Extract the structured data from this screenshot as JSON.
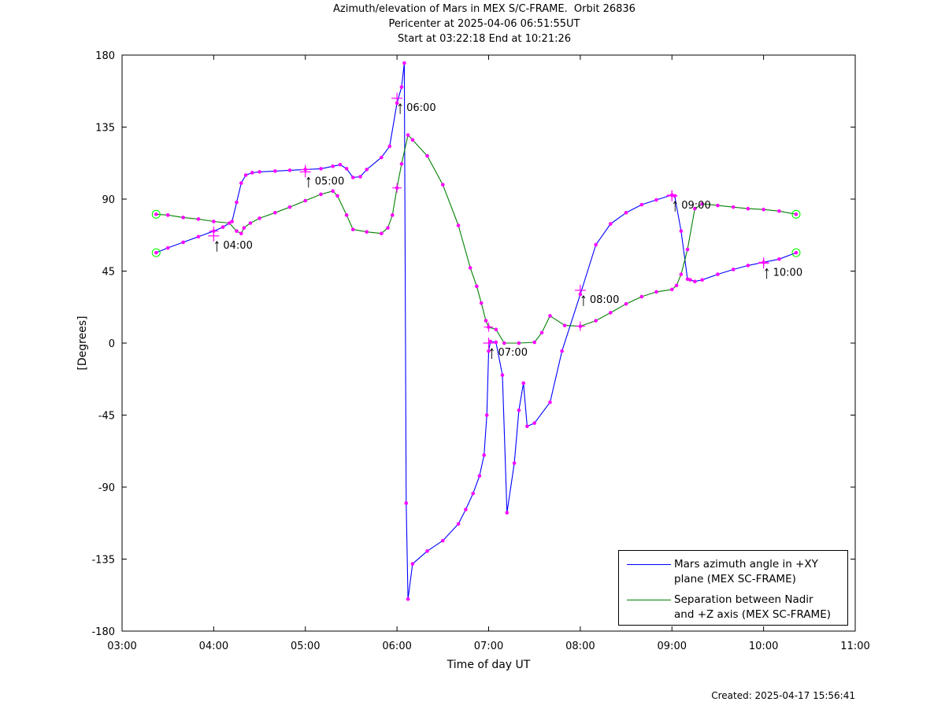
{
  "header": {
    "title_line1": "Azimuth/elevation of Mars in MEX S/C-FRAME.  Orbit 26836",
    "title_line2": "Pericenter at 2025-04-06 06:51:55UT",
    "title_line3": "Start at 03:22:18 End at 10:21:26"
  },
  "footer": {
    "created": "Created: 2025-04-17 15:56:41"
  },
  "legend": {
    "azimuth_line1": "Mars azimuth angle in +XY",
    "azimuth_line2": "plane (MEX SC-FRAME)",
    "separation_line1": "Separation between Nadir",
    "separation_line2": "and +Z axis (MEX SC-FRAME)"
  },
  "colors": {
    "azimuth": "#0000ff",
    "separation": "#008000",
    "markers": "#ff00ff",
    "endpoints": "#00ff00"
  },
  "chart_data": {
    "type": "line",
    "xlabel": "Time of day UT",
    "ylabel": "[Degrees]",
    "xlim": [
      3.0,
      11.0
    ],
    "ylim": [
      -180,
      180
    ],
    "xticks": [
      3,
      4,
      5,
      6,
      7,
      8,
      9,
      10,
      11
    ],
    "xticklabels": [
      "03:00",
      "04:00",
      "05:00",
      "06:00",
      "07:00",
      "08:00",
      "09:00",
      "10:00",
      "11:00"
    ],
    "yticks": [
      180,
      135,
      90,
      45,
      0,
      -45,
      -90,
      -135,
      -180
    ],
    "yticklabels": [
      "180",
      "135",
      "90",
      "45",
      "0",
      "-45",
      "-90",
      "-135",
      "-180"
    ],
    "grid": false,
    "legend_position": "bottom-right",
    "series": [
      {
        "name": "Mars azimuth angle in +XY plane (MEX SC-FRAME)",
        "color": "#0000ff",
        "x": [
          3.372,
          3.5,
          3.667,
          3.833,
          4.0,
          4.1,
          4.2,
          4.25,
          4.3,
          4.35,
          4.42,
          4.5,
          4.67,
          4.83,
          5.0,
          5.17,
          5.3,
          5.38,
          5.45,
          5.52,
          5.6,
          5.67,
          5.83,
          5.92,
          6.0,
          6.05,
          6.08,
          6.1,
          6.12,
          6.17,
          6.33,
          6.5,
          6.67,
          6.75,
          6.83,
          6.9,
          6.95,
          6.98,
          7.0,
          7.02,
          7.08,
          7.15,
          7.2,
          7.28,
          7.33,
          7.38,
          7.42,
          7.5,
          7.67,
          7.8,
          8.0,
          8.17,
          8.33,
          8.5,
          8.67,
          8.83,
          9.0,
          9.03,
          9.1,
          9.17,
          9.2,
          9.25,
          9.33,
          9.5,
          9.67,
          9.83,
          10.0,
          10.17,
          10.355
        ],
        "y": [
          56.5,
          59.5,
          63.0,
          66.5,
          70.0,
          72.5,
          76.0,
          88.0,
          100.0,
          105.0,
          106.5,
          107.0,
          107.5,
          108.0,
          108.5,
          109.0,
          110.5,
          111.5,
          109.0,
          103.5,
          104.0,
          108.5,
          116.0,
          123.0,
          150.0,
          160.0,
          175.0,
          -100.0,
          -160.0,
          -138.0,
          -130.0,
          -123.5,
          -113.0,
          -104.0,
          -94.0,
          -83.0,
          -70.0,
          -45.0,
          -5.0,
          1.0,
          0.5,
          -20.0,
          -106.0,
          -75.0,
          -42.0,
          -25.0,
          -52.0,
          -50.0,
          -37.0,
          -5.0,
          30.5,
          61.5,
          74.5,
          81.5,
          86.5,
          89.5,
          92.5,
          92.0,
          70.0,
          40.0,
          39.5,
          38.5,
          39.5,
          43.0,
          46.0,
          48.5,
          50.5,
          52.5,
          56.5
        ]
      },
      {
        "name": "Separation between Nadir and +Z axis (MEX SC-FRAME)",
        "color": "#008000",
        "x": [
          3.372,
          3.5,
          3.667,
          3.833,
          4.0,
          4.17,
          4.25,
          4.3,
          4.33,
          4.4,
          4.5,
          4.67,
          4.83,
          5.0,
          5.17,
          5.3,
          5.35,
          5.45,
          5.52,
          5.67,
          5.83,
          5.9,
          5.95,
          6.0,
          6.05,
          6.12,
          6.17,
          6.33,
          6.5,
          6.67,
          6.8,
          6.87,
          6.92,
          6.97,
          7.0,
          7.08,
          7.17,
          7.33,
          7.5,
          7.58,
          7.67,
          7.83,
          8.0,
          8.17,
          8.33,
          8.5,
          8.67,
          8.83,
          9.0,
          9.05,
          9.1,
          9.17,
          9.25,
          9.33,
          9.5,
          9.67,
          9.83,
          10.0,
          10.17,
          10.355
        ],
        "y": [
          80.5,
          80.0,
          78.5,
          77.5,
          76.0,
          75.0,
          70.0,
          68.5,
          72.0,
          75.0,
          78.0,
          81.5,
          85.0,
          89.0,
          93.0,
          95.0,
          92.0,
          80.0,
          71.0,
          69.5,
          68.5,
          72.0,
          80.0,
          97.0,
          112.0,
          130.0,
          127.0,
          117.0,
          99.0,
          73.5,
          47.0,
          35.5,
          25.0,
          14.0,
          10.0,
          8.5,
          0.0,
          0.0,
          0.5,
          6.5,
          17.0,
          11.0,
          10.5,
          14.0,
          19.0,
          24.5,
          29.0,
          32.0,
          33.5,
          36.0,
          43.0,
          58.5,
          84.0,
          87.0,
          86.0,
          85.0,
          84.0,
          83.5,
          82.5,
          80.5
        ]
      }
    ]
  },
  "annotations": [
    {
      "x": 4.0,
      "y": 67,
      "text": "04:00"
    },
    {
      "x": 5.0,
      "y": 107,
      "text": "05:00"
    },
    {
      "x": 6.0,
      "y": 153,
      "text": "06:00"
    },
    {
      "x": 7.0,
      "y": 0,
      "text": "07:00"
    },
    {
      "x": 8.0,
      "y": 33,
      "text": "08:00"
    },
    {
      "x": 9.0,
      "y": 92,
      "text": "09:00"
    },
    {
      "x": 10.0,
      "y": 50,
      "text": "10:00"
    }
  ]
}
